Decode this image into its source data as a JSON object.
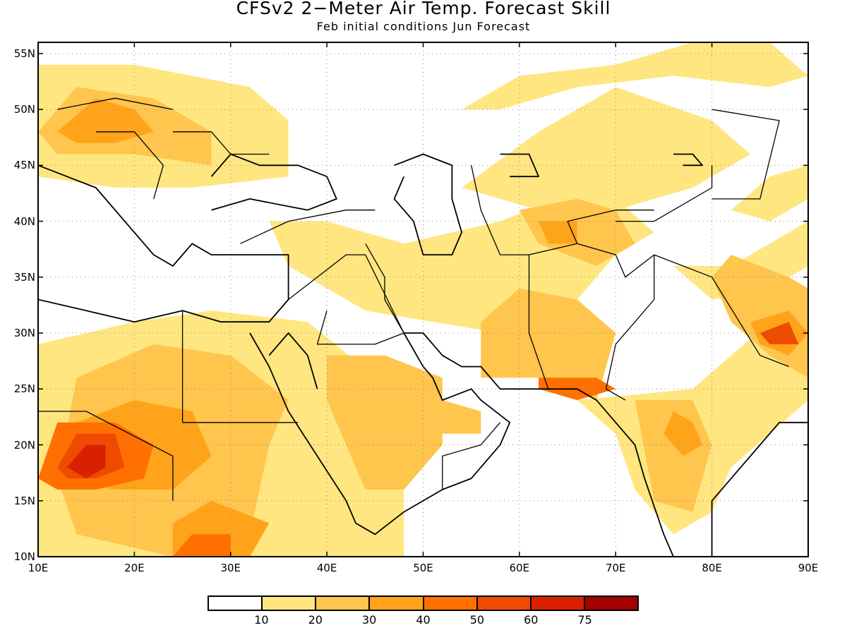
{
  "title": "CFSv2 2−Meter Air Temp. Forecast Skill",
  "subtitle": "Feb initial conditions  Jun Forecast",
  "map": {
    "lon_range": [
      10,
      90
    ],
    "lat_range": [
      10,
      56
    ],
    "grid": "dotted",
    "lat_ticks": [
      {
        "value": 55,
        "label": "55N"
      },
      {
        "value": 50,
        "label": "50N"
      },
      {
        "value": 45,
        "label": "45N"
      },
      {
        "value": 40,
        "label": "40N"
      },
      {
        "value": 35,
        "label": "35N"
      },
      {
        "value": 30,
        "label": "30N"
      },
      {
        "value": 25,
        "label": "25N"
      },
      {
        "value": 20,
        "label": "20N"
      },
      {
        "value": 15,
        "label": "15N"
      },
      {
        "value": 10,
        "label": "10N"
      }
    ],
    "lon_ticks": [
      {
        "value": 10,
        "label": "10E"
      },
      {
        "value": 20,
        "label": "20E"
      },
      {
        "value": 30,
        "label": "30E"
      },
      {
        "value": 40,
        "label": "40E"
      },
      {
        "value": 50,
        "label": "50E"
      },
      {
        "value": 60,
        "label": "60E"
      },
      {
        "value": 70,
        "label": "70E"
      },
      {
        "value": 80,
        "label": "80E"
      },
      {
        "value": 90,
        "label": "90E"
      }
    ]
  },
  "colorbar": {
    "colors": [
      "#ffffff",
      "#ffe680",
      "#ffc54d",
      "#ffa31a",
      "#ff7000",
      "#f04a00",
      "#d92100",
      "#a30000"
    ],
    "labels": [
      "10",
      "20",
      "30",
      "40",
      "50",
      "60",
      "75"
    ]
  },
  "skill_regions": [
    {
      "level": 1,
      "points": [
        [
          10,
          10
        ],
        [
          48,
          10
        ],
        [
          48,
          24
        ],
        [
          38,
          31
        ],
        [
          28,
          32
        ],
        [
          20,
          31
        ],
        [
          10,
          29
        ]
      ]
    },
    {
      "level": 1,
      "points": [
        [
          10,
          44
        ],
        [
          10,
          54
        ],
        [
          20,
          54
        ],
        [
          32,
          52
        ],
        [
          36,
          49
        ],
        [
          36,
          44
        ],
        [
          26,
          43
        ],
        [
          18,
          43
        ]
      ]
    },
    {
      "level": 1,
      "points": [
        [
          36,
          36
        ],
        [
          44,
          32
        ],
        [
          58,
          30
        ],
        [
          64,
          31
        ],
        [
          70,
          37
        ],
        [
          74,
          39
        ],
        [
          70,
          42
        ],
        [
          64,
          42
        ],
        [
          58,
          40
        ],
        [
          48,
          38
        ],
        [
          40,
          40
        ],
        [
          34,
          40
        ]
      ]
    },
    {
      "level": 1,
      "points": [
        [
          54,
          43
        ],
        [
          62,
          48
        ],
        [
          70,
          52
        ],
        [
          80,
          49
        ],
        [
          84,
          46
        ],
        [
          78,
          43
        ],
        [
          70,
          41
        ],
        [
          62,
          41
        ]
      ]
    },
    {
      "level": 1,
      "points": [
        [
          54,
          50
        ],
        [
          60,
          53
        ],
        [
          70,
          54
        ],
        [
          78,
          56
        ],
        [
          86,
          56
        ],
        [
          90,
          53
        ],
        [
          86,
          52
        ],
        [
          76,
          53
        ],
        [
          66,
          52
        ],
        [
          58,
          50
        ]
      ]
    },
    {
      "level": 1,
      "points": [
        [
          66,
          24
        ],
        [
          78,
          25
        ],
        [
          86,
          31
        ],
        [
          90,
          34
        ],
        [
          90,
          24
        ],
        [
          86,
          21
        ],
        [
          82,
          18
        ],
        [
          80,
          14
        ],
        [
          76,
          12
        ],
        [
          72,
          16
        ],
        [
          70,
          21
        ]
      ]
    },
    {
      "level": 1,
      "points": [
        [
          76,
          36
        ],
        [
          82,
          36
        ],
        [
          86,
          38
        ],
        [
          90,
          40
        ],
        [
          90,
          36
        ],
        [
          86,
          34
        ],
        [
          80,
          33
        ]
      ]
    },
    {
      "level": 1,
      "points": [
        [
          82,
          41
        ],
        [
          86,
          44
        ],
        [
          90,
          45
        ],
        [
          90,
          42
        ],
        [
          86,
          40
        ]
      ]
    },
    {
      "level": 2,
      "points": [
        [
          12,
          17
        ],
        [
          14,
          26
        ],
        [
          22,
          29
        ],
        [
          30,
          28
        ],
        [
          36,
          24
        ],
        [
          34,
          20
        ],
        [
          32,
          12
        ],
        [
          24,
          10
        ],
        [
          14,
          12
        ]
      ]
    },
    {
      "level": 2,
      "points": [
        [
          10,
          48
        ],
        [
          14,
          52
        ],
        [
          22,
          51
        ],
        [
          28,
          48
        ],
        [
          28,
          45
        ],
        [
          20,
          46
        ],
        [
          12,
          46
        ]
      ]
    },
    {
      "level": 2,
      "points": [
        [
          40,
          28
        ],
        [
          46,
          28
        ],
        [
          52,
          26
        ],
        [
          52,
          20
        ],
        [
          48,
          16
        ],
        [
          44,
          16
        ],
        [
          42,
          20
        ],
        [
          40,
          24
        ]
      ]
    },
    {
      "level": 2,
      "points": [
        [
          52,
          24
        ],
        [
          56,
          23
        ],
        [
          56,
          21
        ],
        [
          52,
          21
        ]
      ]
    },
    {
      "level": 2,
      "points": [
        [
          56,
          26
        ],
        [
          62,
          26
        ],
        [
          68,
          24
        ],
        [
          70,
          30
        ],
        [
          66,
          33
        ],
        [
          60,
          34
        ],
        [
          56,
          31
        ]
      ]
    },
    {
      "level": 2,
      "points": [
        [
          60,
          41
        ],
        [
          66,
          42
        ],
        [
          70,
          41
        ],
        [
          72,
          38
        ],
        [
          68,
          36
        ],
        [
          62,
          38
        ]
      ]
    },
    {
      "level": 2,
      "points": [
        [
          72,
          24
        ],
        [
          78,
          24
        ],
        [
          80,
          20
        ],
        [
          78,
          14
        ],
        [
          74,
          15
        ]
      ]
    },
    {
      "level": 2,
      "points": [
        [
          82,
          37
        ],
        [
          88,
          35
        ],
        [
          90,
          34
        ],
        [
          90,
          26
        ],
        [
          86,
          28
        ],
        [
          82,
          31
        ],
        [
          80,
          35
        ]
      ]
    },
    {
      "level": 3,
      "points": [
        [
          12,
          17
        ],
        [
          14,
          22
        ],
        [
          20,
          24
        ],
        [
          26,
          23
        ],
        [
          28,
          19
        ],
        [
          24,
          16
        ],
        [
          18,
          16
        ]
      ]
    },
    {
      "level": 3,
      "points": [
        [
          24,
          10
        ],
        [
          32,
          10
        ],
        [
          34,
          13
        ],
        [
          28,
          15
        ],
        [
          24,
          13
        ]
      ]
    },
    {
      "level": 3,
      "points": [
        [
          12,
          48
        ],
        [
          16,
          51
        ],
        [
          20,
          50
        ],
        [
          22,
          48
        ],
        [
          18,
          47
        ],
        [
          14,
          47
        ]
      ]
    },
    {
      "level": 3,
      "points": [
        [
          76,
          23
        ],
        [
          78,
          22
        ],
        [
          79,
          20
        ],
        [
          77,
          19
        ],
        [
          75,
          21
        ]
      ]
    },
    {
      "level": 3,
      "points": [
        [
          84,
          31
        ],
        [
          88,
          32
        ],
        [
          90,
          30
        ],
        [
          88,
          28
        ],
        [
          85,
          29
        ]
      ]
    },
    {
      "level": 3,
      "points": [
        [
          62,
          40
        ],
        [
          66,
          40
        ],
        [
          66,
          38
        ],
        [
          63,
          38
        ]
      ]
    },
    {
      "level": 4,
      "points": [
        [
          10,
          17
        ],
        [
          12,
          22
        ],
        [
          18,
          22
        ],
        [
          22,
          20
        ],
        [
          21,
          17
        ],
        [
          16,
          16
        ],
        [
          12,
          16
        ]
      ]
    },
    {
      "level": 4,
      "points": [
        [
          24,
          10
        ],
        [
          30,
          10
        ],
        [
          30,
          12
        ],
        [
          26,
          12
        ]
      ]
    },
    {
      "level": 4,
      "points": [
        [
          62,
          26
        ],
        [
          68,
          26
        ],
        [
          70,
          25
        ],
        [
          66,
          24
        ],
        [
          62,
          25
        ]
      ]
    },
    {
      "level": 5,
      "points": [
        [
          12,
          18
        ],
        [
          14,
          21
        ],
        [
          18,
          21
        ],
        [
          19,
          18
        ],
        [
          16,
          17
        ],
        [
          13,
          17
        ]
      ]
    },
    {
      "level": 5,
      "points": [
        [
          85,
          30
        ],
        [
          88,
          31
        ],
        [
          89,
          29
        ],
        [
          86,
          29
        ]
      ]
    },
    {
      "level": 6,
      "points": [
        [
          13,
          18
        ],
        [
          15,
          20
        ],
        [
          17,
          20
        ],
        [
          17,
          18
        ],
        [
          15,
          17
        ]
      ]
    }
  ],
  "coastlines": [
    [
      [
        10,
        45
      ],
      [
        13,
        44
      ],
      [
        16,
        43
      ],
      [
        19,
        40
      ],
      [
        22,
        37
      ],
      [
        24,
        36
      ],
      [
        26,
        38
      ],
      [
        28,
        37
      ],
      [
        32,
        37
      ],
      [
        36,
        37
      ],
      [
        36,
        33
      ],
      [
        34,
        31
      ],
      [
        32,
        31
      ],
      [
        29,
        31
      ],
      [
        25,
        32
      ],
      [
        20,
        31
      ],
      [
        15,
        32
      ],
      [
        10,
        33
      ]
    ],
    [
      [
        28,
        41
      ],
      [
        32,
        42
      ],
      [
        38,
        41
      ],
      [
        41,
        42
      ],
      [
        40,
        44
      ],
      [
        37,
        45
      ],
      [
        33,
        45
      ],
      [
        30,
        46
      ],
      [
        28,
        44
      ]
    ],
    [
      [
        32,
        30
      ],
      [
        34,
        27
      ],
      [
        36,
        23
      ],
      [
        39,
        19
      ],
      [
        42,
        15
      ],
      [
        43,
        13
      ],
      [
        45,
        12
      ],
      [
        48,
        14
      ],
      [
        52,
        16
      ],
      [
        55,
        17
      ],
      [
        58,
        20
      ],
      [
        59,
        22
      ],
      [
        56,
        24
      ],
      [
        55,
        25
      ],
      [
        52,
        24
      ],
      [
        51,
        26
      ],
      [
        50,
        27
      ],
      [
        48,
        30
      ],
      [
        50,
        30
      ],
      [
        52,
        28
      ],
      [
        54,
        27
      ],
      [
        56,
        27
      ],
      [
        58,
        25
      ],
      [
        62,
        25
      ],
      [
        66,
        25
      ],
      [
        68,
        24
      ],
      [
        70,
        22
      ],
      [
        72,
        20
      ],
      [
        73,
        17
      ],
      [
        75,
        12
      ],
      [
        77,
        8
      ]
    ],
    [
      [
        34,
        28
      ],
      [
        36,
        30
      ],
      [
        38,
        28
      ],
      [
        39,
        25
      ]
    ],
    [
      [
        80,
        10
      ],
      [
        80,
        13
      ],
      [
        80,
        15
      ],
      [
        82,
        17
      ],
      [
        85,
        20
      ],
      [
        87,
        22
      ],
      [
        90,
        22
      ]
    ],
    [
      [
        47,
        45
      ],
      [
        50,
        46
      ],
      [
        53,
        45
      ],
      [
        53,
        42
      ],
      [
        54,
        39
      ],
      [
        53,
        37
      ],
      [
        50,
        37
      ],
      [
        49,
        40
      ],
      [
        47,
        42
      ],
      [
        48,
        44
      ]
    ],
    [
      [
        58,
        46
      ],
      [
        61,
        46
      ],
      [
        62,
        44
      ],
      [
        59,
        44
      ]
    ],
    [
      [
        76,
        46
      ],
      [
        78,
        46
      ],
      [
        79,
        45
      ],
      [
        77,
        45
      ]
    ]
  ],
  "borders": [
    [
      [
        25,
        22
      ],
      [
        25,
        32
      ]
    ],
    [
      [
        25,
        22
      ],
      [
        37,
        22
      ]
    ],
    [
      [
        10,
        23
      ],
      [
        15,
        23
      ],
      [
        24,
        19
      ],
      [
        24,
        15
      ]
    ],
    [
      [
        36,
        33
      ],
      [
        42,
        37
      ],
      [
        44,
        37
      ],
      [
        48,
        30
      ]
    ],
    [
      [
        40,
        32
      ],
      [
        39,
        29
      ],
      [
        45,
        29
      ],
      [
        48,
        30
      ]
    ],
    [
      [
        44,
        38
      ],
      [
        46,
        35
      ],
      [
        46,
        33
      ],
      [
        48,
        30
      ]
    ],
    [
      [
        61,
        37
      ],
      [
        61,
        30
      ],
      [
        63,
        25
      ]
    ],
    [
      [
        61,
        37
      ],
      [
        66,
        38
      ],
      [
        70,
        37
      ],
      [
        71,
        35
      ],
      [
        74,
        37
      ]
    ],
    [
      [
        66,
        38
      ],
      [
        65,
        40
      ],
      [
        70,
        41
      ],
      [
        74,
        41
      ]
    ],
    [
      [
        55,
        45
      ],
      [
        56,
        41
      ],
      [
        58,
        37
      ],
      [
        61,
        37
      ]
    ],
    [
      [
        74,
        37
      ],
      [
        74,
        33
      ],
      [
        70,
        29
      ],
      [
        69,
        25
      ],
      [
        71,
        24
      ]
    ],
    [
      [
        74,
        37
      ],
      [
        80,
        35
      ],
      [
        85,
        28
      ],
      [
        88,
        27
      ]
    ],
    [
      [
        80,
        42
      ],
      [
        85,
        42
      ],
      [
        87,
        49
      ],
      [
        80,
        50
      ]
    ],
    [
      [
        70,
        40
      ],
      [
        74,
        40
      ],
      [
        80,
        43
      ],
      [
        80,
        45
      ]
    ],
    [
      [
        24,
        48
      ],
      [
        28,
        48
      ],
      [
        30,
        46
      ],
      [
        34,
        46
      ]
    ],
    [
      [
        16,
        48
      ],
      [
        20,
        48
      ],
      [
        23,
        45
      ],
      [
        22,
        42
      ]
    ],
    [
      [
        12,
        50
      ],
      [
        18,
        51
      ],
      [
        24,
        50
      ]
    ],
    [
      [
        31,
        38
      ],
      [
        36,
        40
      ],
      [
        42,
        41
      ],
      [
        45,
        41
      ]
    ],
    [
      [
        52,
        16
      ],
      [
        52,
        19
      ],
      [
        56,
        20
      ],
      [
        58,
        22
      ]
    ]
  ]
}
